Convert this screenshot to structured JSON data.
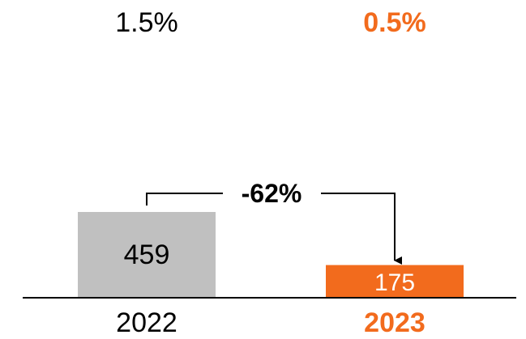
{
  "chart_data": {
    "type": "bar",
    "categories": [
      "2022",
      "2023"
    ],
    "values": [
      459,
      175
    ],
    "data_labels": [
      "459",
      "175"
    ],
    "top_labels": [
      "1.5%",
      "0.5%"
    ],
    "change_label": "-62%",
    "title": "",
    "xlabel": "",
    "ylabel": "",
    "grid": false,
    "legend": "none"
  },
  "colors": {
    "bar_2022": "#c0c0c0",
    "bar_2023": "#f26b1d",
    "highlight_text": "#f26b1d",
    "text": "#000000",
    "axis": "#000000"
  }
}
